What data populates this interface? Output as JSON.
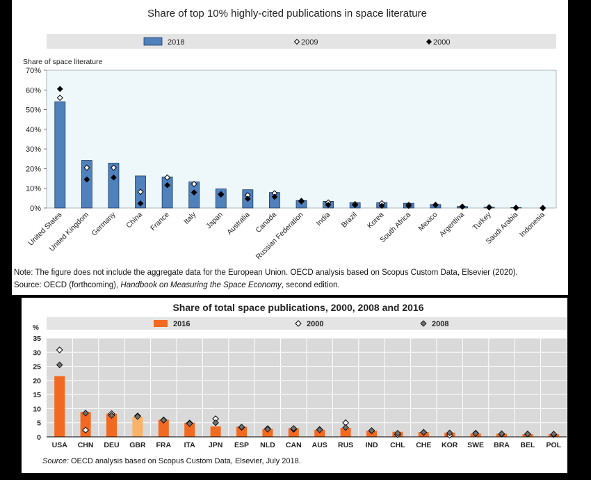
{
  "top": {
    "note_line1": "Note: The figure does not include the aggregate data for the European Union. OECD analysis based on Scopus Custom Data, Elsevier (2020).",
    "source_prefix": "Source: OECD (forthcoming), ",
    "source_italic": "Handbook on Measuring the Space Economy",
    "source_suffix": ", second edition."
  },
  "bottom": {
    "source_label": "Source:",
    "source_text": " OECD analysis based on Scopus Custom Data, Elsevier, July 2018."
  },
  "colors": {
    "top_plot_bg": "#eef8fb",
    "top_bar": "#4f81bd",
    "top_bar_stroke": "#1f3a5c",
    "legend_bg": "#e4e4e4",
    "bottom_plot_bg": "#d9d9d9",
    "bottom_bar": "#f26a21",
    "bottom_bar_highlight": "#f8b26a",
    "marker_2008": "#707070"
  },
  "chart_data": [
    {
      "type": "bar",
      "title": "Share of top 10% highly-cited publications in space literature",
      "ylabel": "Share of space literature",
      "ylim": [
        0,
        70
      ],
      "yticks": [
        "0%",
        "10%",
        "20%",
        "30%",
        "40%",
        "50%",
        "60%",
        "70%"
      ],
      "legend": [
        "2018",
        "2009",
        "2000"
      ],
      "legend_position": "top",
      "categories": [
        "United States",
        "United Kingdom",
        "Germany",
        "China",
        "France",
        "Italy",
        "Japan",
        "Australia",
        "Canada",
        "Russian Federation",
        "India",
        "Brazil",
        "Korea",
        "South Africa",
        "Mexico",
        "Argentina",
        "Turkey",
        "Saudi Arabia",
        "Indonesia"
      ],
      "series": [
        {
          "name": "2018",
          "kind": "bar",
          "values": [
            54,
            24.2,
            22.8,
            16.3,
            15.8,
            13.3,
            9.7,
            9.3,
            7.9,
            3.8,
            3.4,
            2.7,
            2.7,
            2.4,
            1.8,
            0.8,
            0.4,
            0.2,
            0
          ]
        },
        {
          "name": "2009",
          "kind": "hollow-diamond",
          "values": [
            56,
            20.5,
            20.5,
            8.2,
            15.5,
            12.2,
            7,
            6.5,
            7.5,
            3.6,
            2.8,
            2,
            2.4,
            1.6,
            1.6,
            0.7,
            0.4,
            0.1,
            0
          ]
        },
        {
          "name": "2000",
          "kind": "filled-diamond",
          "values": [
            60.5,
            14.5,
            15.5,
            2.3,
            11.6,
            7.9,
            6.8,
            4.7,
            5.7,
            3.3,
            1.6,
            1.5,
            1.1,
            1.1,
            1.6,
            0.7,
            0.2,
            0.1,
            0
          ]
        }
      ]
    },
    {
      "type": "bar",
      "title": "Share of total space publications, 2000, 2008 and 2016",
      "ylabel": "%",
      "ylim": [
        0,
        35
      ],
      "yticks": [
        "0",
        "5",
        "10",
        "15",
        "20",
        "25",
        "30",
        "35"
      ],
      "legend": [
        "2016",
        "2000",
        "2008"
      ],
      "legend_position": "top",
      "categories": [
        "USA",
        "CHN",
        "DEU",
        "GBR",
        "FRA",
        "ITA",
        "JPN",
        "ESP",
        "NLD",
        "CAN",
        "AUS",
        "RUS",
        "IND",
        "CHL",
        "CHE",
        "KOR",
        "SWE",
        "BRA",
        "BEL",
        "POL"
      ],
      "highlight": "GBR",
      "series": [
        {
          "name": "2016",
          "kind": "bar",
          "values": [
            21.5,
            8.8,
            8.2,
            7.2,
            6.1,
            5,
            3.7,
            3.6,
            2.8,
            3.1,
            2.5,
            3.2,
            2.2,
            1.8,
            1.7,
            1.5,
            1.2,
            1.1,
            1,
            1
          ]
        },
        {
          "name": "2000",
          "kind": "hollow-diamond",
          "values": [
            30.8,
            2.4,
            8.2,
            7.4,
            6,
            4.9,
            6.4,
            3.4,
            2.9,
            2.7,
            2.6,
            5,
            2.2,
            0.8,
            1.6,
            0.6,
            1.3,
            1,
            1,
            0.8
          ]
        },
        {
          "name": "2008",
          "kind": "filled-diamond",
          "values": [
            25.5,
            8.4,
            7.6,
            7.2,
            5.9,
            4.7,
            5,
            3.5,
            2.7,
            3,
            2.5,
            3.3,
            2.2,
            1.3,
            1.6,
            1.4,
            1.2,
            1.1,
            1,
            1
          ]
        }
      ]
    }
  ]
}
